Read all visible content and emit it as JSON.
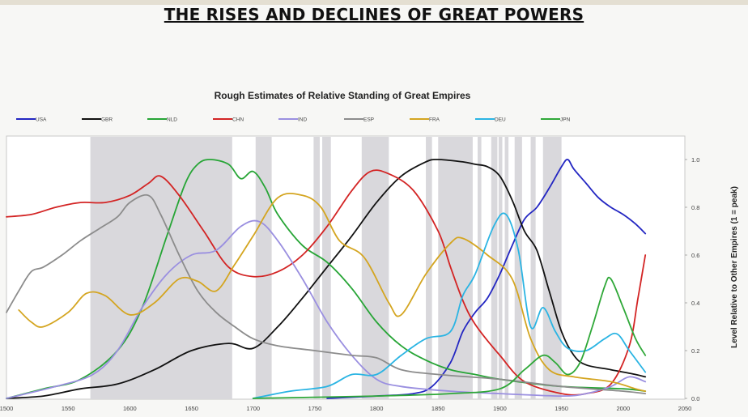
{
  "page": {
    "main_title": "THE RISES AND DECLINES OF GREAT POWERS"
  },
  "chart_data": {
    "type": "line",
    "title": "Rough Estimates of Relative Standing of Great Empires",
    "xlabel": "",
    "ylabel": "Level Relative to Other Empires (1 = peak)",
    "xlim": [
      1500,
      2050
    ],
    "ylim": [
      0,
      1.05
    ],
    "xticks": [
      "1500",
      "1550",
      "1600",
      "1650",
      "1700",
      "1750",
      "1800",
      "1850",
      "1900",
      "1950",
      "2000",
      "2050"
    ],
    "yticks": [
      "0.0",
      "0.2",
      "0.4",
      "0.6",
      "0.8",
      "1.0"
    ],
    "legend_position": "top",
    "grid": false,
    "shaded_periods": [
      [
        1568,
        1683
      ],
      [
        1702,
        1715
      ],
      [
        1749,
        1754
      ],
      [
        1756,
        1763
      ],
      [
        1788,
        1810
      ],
      [
        1840,
        1845
      ],
      [
        1850,
        1878
      ],
      [
        1882,
        1885
      ],
      [
        1893,
        1898
      ],
      [
        1899,
        1902
      ],
      [
        1904,
        1907
      ],
      [
        1912,
        1918
      ],
      [
        1925,
        1929
      ],
      [
        1935,
        1950
      ]
    ],
    "series": [
      {
        "name": "USA",
        "color": "#2326c2",
        "points": [
          [
            1760,
            0.0
          ],
          [
            1800,
            0.01
          ],
          [
            1830,
            0.02
          ],
          [
            1845,
            0.05
          ],
          [
            1860,
            0.15
          ],
          [
            1870,
            0.28
          ],
          [
            1880,
            0.36
          ],
          [
            1890,
            0.42
          ],
          [
            1900,
            0.52
          ],
          [
            1910,
            0.64
          ],
          [
            1920,
            0.75
          ],
          [
            1930,
            0.8
          ],
          [
            1940,
            0.88
          ],
          [
            1950,
            0.97
          ],
          [
            1955,
            1.0
          ],
          [
            1960,
            0.96
          ],
          [
            1970,
            0.9
          ],
          [
            1980,
            0.84
          ],
          [
            1990,
            0.8
          ],
          [
            2000,
            0.77
          ],
          [
            2010,
            0.73
          ],
          [
            2018,
            0.69
          ]
        ]
      },
      {
        "name": "GBR",
        "color": "#111111",
        "points": [
          [
            1500,
            0.0
          ],
          [
            1530,
            0.01
          ],
          [
            1560,
            0.04
          ],
          [
            1590,
            0.06
          ],
          [
            1620,
            0.12
          ],
          [
            1650,
            0.2
          ],
          [
            1680,
            0.23
          ],
          [
            1700,
            0.21
          ],
          [
            1720,
            0.3
          ],
          [
            1740,
            0.42
          ],
          [
            1760,
            0.55
          ],
          [
            1780,
            0.68
          ],
          [
            1800,
            0.82
          ],
          [
            1820,
            0.93
          ],
          [
            1840,
            0.99
          ],
          [
            1850,
            1.0
          ],
          [
            1870,
            0.99
          ],
          [
            1880,
            0.98
          ],
          [
            1890,
            0.97
          ],
          [
            1900,
            0.93
          ],
          [
            1910,
            0.83
          ],
          [
            1920,
            0.7
          ],
          [
            1930,
            0.62
          ],
          [
            1940,
            0.45
          ],
          [
            1950,
            0.28
          ],
          [
            1960,
            0.18
          ],
          [
            1970,
            0.14
          ],
          [
            1990,
            0.12
          ],
          [
            2010,
            0.1
          ],
          [
            2018,
            0.09
          ]
        ]
      },
      {
        "name": "NLD",
        "color": "#27a536",
        "points": [
          [
            1500,
            0.0
          ],
          [
            1530,
            0.04
          ],
          [
            1560,
            0.08
          ],
          [
            1590,
            0.2
          ],
          [
            1610,
            0.38
          ],
          [
            1630,
            0.68
          ],
          [
            1645,
            0.9
          ],
          [
            1655,
            0.98
          ],
          [
            1665,
            1.0
          ],
          [
            1680,
            0.98
          ],
          [
            1690,
            0.92
          ],
          [
            1700,
            0.95
          ],
          [
            1710,
            0.88
          ],
          [
            1720,
            0.77
          ],
          [
            1740,
            0.64
          ],
          [
            1760,
            0.57
          ],
          [
            1780,
            0.46
          ],
          [
            1800,
            0.32
          ],
          [
            1820,
            0.22
          ],
          [
            1840,
            0.16
          ],
          [
            1860,
            0.12
          ],
          [
            1880,
            0.1
          ],
          [
            1900,
            0.08
          ],
          [
            1950,
            0.05
          ],
          [
            2000,
            0.04
          ],
          [
            2018,
            0.03
          ]
        ]
      },
      {
        "name": "CHN",
        "color": "#d32424",
        "points": [
          [
            1500,
            0.76
          ],
          [
            1520,
            0.77
          ],
          [
            1540,
            0.8
          ],
          [
            1560,
            0.82
          ],
          [
            1580,
            0.82
          ],
          [
            1600,
            0.85
          ],
          [
            1615,
            0.9
          ],
          [
            1625,
            0.93
          ],
          [
            1640,
            0.85
          ],
          [
            1660,
            0.7
          ],
          [
            1680,
            0.55
          ],
          [
            1700,
            0.51
          ],
          [
            1720,
            0.53
          ],
          [
            1740,
            0.6
          ],
          [
            1760,
            0.72
          ],
          [
            1780,
            0.87
          ],
          [
            1795,
            0.95
          ],
          [
            1810,
            0.94
          ],
          [
            1830,
            0.87
          ],
          [
            1850,
            0.7
          ],
          [
            1860,
            0.55
          ],
          [
            1870,
            0.41
          ],
          [
            1880,
            0.31
          ],
          [
            1900,
            0.18
          ],
          [
            1920,
            0.07
          ],
          [
            1950,
            0.02
          ],
          [
            1970,
            0.02
          ],
          [
            1990,
            0.06
          ],
          [
            2005,
            0.22
          ],
          [
            2012,
            0.42
          ],
          [
            2018,
            0.6
          ]
        ]
      },
      {
        "name": "IND",
        "color": "#9a8fe0",
        "points": [
          [
            1500,
            0.0
          ],
          [
            1540,
            0.05
          ],
          [
            1570,
            0.1
          ],
          [
            1590,
            0.2
          ],
          [
            1610,
            0.38
          ],
          [
            1630,
            0.52
          ],
          [
            1650,
            0.6
          ],
          [
            1670,
            0.62
          ],
          [
            1690,
            0.72
          ],
          [
            1705,
            0.74
          ],
          [
            1720,
            0.66
          ],
          [
            1740,
            0.5
          ],
          [
            1760,
            0.32
          ],
          [
            1780,
            0.18
          ],
          [
            1800,
            0.08
          ],
          [
            1820,
            0.05
          ],
          [
            1860,
            0.03
          ],
          [
            1900,
            0.02
          ],
          [
            1950,
            0.01
          ],
          [
            1970,
            0.02
          ],
          [
            1990,
            0.05
          ],
          [
            2005,
            0.09
          ],
          [
            2018,
            0.07
          ]
        ]
      },
      {
        "name": "ESP",
        "color": "#8c8c8c",
        "points": [
          [
            1500,
            0.36
          ],
          [
            1510,
            0.45
          ],
          [
            1520,
            0.53
          ],
          [
            1530,
            0.55
          ],
          [
            1545,
            0.6
          ],
          [
            1560,
            0.66
          ],
          [
            1575,
            0.71
          ],
          [
            1590,
            0.76
          ],
          [
            1600,
            0.82
          ],
          [
            1615,
            0.85
          ],
          [
            1625,
            0.77
          ],
          [
            1640,
            0.6
          ],
          [
            1655,
            0.45
          ],
          [
            1670,
            0.36
          ],
          [
            1685,
            0.3
          ],
          [
            1700,
            0.25
          ],
          [
            1720,
            0.22
          ],
          [
            1750,
            0.2
          ],
          [
            1780,
            0.18
          ],
          [
            1800,
            0.17
          ],
          [
            1820,
            0.12
          ],
          [
            1850,
            0.1
          ],
          [
            1900,
            0.08
          ],
          [
            1950,
            0.05
          ],
          [
            2000,
            0.03
          ],
          [
            2018,
            0.02
          ]
        ]
      },
      {
        "name": "FRA",
        "color": "#d4a520",
        "points": [
          [
            1510,
            0.37
          ],
          [
            1520,
            0.32
          ],
          [
            1530,
            0.3
          ],
          [
            1550,
            0.36
          ],
          [
            1565,
            0.44
          ],
          [
            1580,
            0.43
          ],
          [
            1600,
            0.35
          ],
          [
            1620,
            0.4
          ],
          [
            1640,
            0.5
          ],
          [
            1655,
            0.49
          ],
          [
            1670,
            0.45
          ],
          [
            1685,
            0.56
          ],
          [
            1700,
            0.68
          ],
          [
            1720,
            0.84
          ],
          [
            1740,
            0.85
          ],
          [
            1755,
            0.8
          ],
          [
            1770,
            0.66
          ],
          [
            1790,
            0.59
          ],
          [
            1810,
            0.4
          ],
          [
            1820,
            0.35
          ],
          [
            1840,
            0.52
          ],
          [
            1860,
            0.65
          ],
          [
            1870,
            0.67
          ],
          [
            1890,
            0.6
          ],
          [
            1910,
            0.5
          ],
          [
            1925,
            0.25
          ],
          [
            1940,
            0.12
          ],
          [
            1960,
            0.09
          ],
          [
            1990,
            0.07
          ],
          [
            2010,
            0.04
          ],
          [
            2018,
            0.03
          ]
        ]
      },
      {
        "name": "DEU",
        "color": "#2ab4e3",
        "points": [
          [
            1700,
            0.0
          ],
          [
            1730,
            0.03
          ],
          [
            1760,
            0.05
          ],
          [
            1780,
            0.1
          ],
          [
            1800,
            0.1
          ],
          [
            1820,
            0.18
          ],
          [
            1840,
            0.25
          ],
          [
            1860,
            0.28
          ],
          [
            1870,
            0.43
          ],
          [
            1880,
            0.52
          ],
          [
            1895,
            0.72
          ],
          [
            1905,
            0.77
          ],
          [
            1915,
            0.62
          ],
          [
            1925,
            0.3
          ],
          [
            1935,
            0.38
          ],
          [
            1945,
            0.28
          ],
          [
            1955,
            0.21
          ],
          [
            1970,
            0.2
          ],
          [
            1985,
            0.25
          ],
          [
            1995,
            0.27
          ],
          [
            2005,
            0.2
          ],
          [
            2018,
            0.11
          ]
        ]
      },
      {
        "name": "JPN",
        "color": "#2fa838",
        "points": [
          [
            1700,
            0.0
          ],
          [
            1800,
            0.01
          ],
          [
            1860,
            0.02
          ],
          [
            1900,
            0.04
          ],
          [
            1920,
            0.12
          ],
          [
            1935,
            0.18
          ],
          [
            1945,
            0.15
          ],
          [
            1955,
            0.1
          ],
          [
            1965,
            0.15
          ],
          [
            1975,
            0.3
          ],
          [
            1985,
            0.47
          ],
          [
            1990,
            0.5
          ],
          [
            2000,
            0.38
          ],
          [
            2010,
            0.25
          ],
          [
            2018,
            0.18
          ]
        ]
      }
    ]
  }
}
